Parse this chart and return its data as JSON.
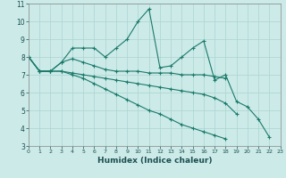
{
  "xlabel": "Humidex (Indice chaleur)",
  "bg_color": "#cceae8",
  "line_color": "#1a7a6a",
  "grid_color": "#aad4d0",
  "xlim": [
    0,
    23
  ],
  "ylim": [
    3,
    11
  ],
  "xticks": [
    0,
    1,
    2,
    3,
    4,
    5,
    6,
    7,
    8,
    9,
    10,
    11,
    12,
    13,
    14,
    15,
    16,
    17,
    18,
    19,
    20,
    21,
    22,
    23
  ],
  "yticks": [
    3,
    4,
    5,
    6,
    7,
    8,
    9,
    10,
    11
  ],
  "series": [
    {
      "x": [
        0,
        1,
        2,
        3,
        4,
        5,
        6,
        7,
        8,
        9,
        10,
        11,
        12,
        13,
        14,
        15,
        16,
        17,
        18,
        19,
        20,
        21,
        22
      ],
      "y": [
        8.0,
        7.2,
        7.2,
        7.7,
        8.5,
        8.5,
        8.5,
        8.0,
        8.5,
        9.0,
        10.0,
        10.7,
        7.4,
        7.5,
        8.0,
        8.5,
        8.9,
        6.7,
        7.0,
        5.5,
        5.2,
        4.5,
        3.5
      ]
    },
    {
      "x": [
        0,
        1,
        2,
        3,
        4,
        5,
        6,
        7,
        8,
        9,
        10,
        11,
        12,
        13,
        14,
        15,
        16,
        17,
        18
      ],
      "y": [
        8.0,
        7.2,
        7.2,
        7.7,
        7.9,
        7.7,
        7.5,
        7.3,
        7.2,
        7.2,
        7.2,
        7.1,
        7.1,
        7.1,
        7.0,
        7.0,
        7.0,
        6.9,
        6.8
      ]
    },
    {
      "x": [
        0,
        1,
        2,
        3,
        4,
        5,
        6,
        7,
        8,
        9,
        10,
        11,
        12,
        13,
        14,
        15,
        16,
        17,
        18,
        19
      ],
      "y": [
        8.0,
        7.2,
        7.2,
        7.2,
        7.1,
        7.0,
        6.9,
        6.8,
        6.7,
        6.6,
        6.5,
        6.4,
        6.3,
        6.2,
        6.1,
        6.0,
        5.9,
        5.7,
        5.4,
        4.8
      ]
    },
    {
      "x": [
        0,
        1,
        2,
        3,
        4,
        5,
        6,
        7,
        8,
        9,
        10,
        11,
        12,
        13,
        14,
        15,
        16,
        17,
        18
      ],
      "y": [
        8.0,
        7.2,
        7.2,
        7.2,
        7.0,
        6.8,
        6.5,
        6.2,
        5.9,
        5.6,
        5.3,
        5.0,
        4.8,
        4.5,
        4.2,
        4.0,
        3.8,
        3.6,
        3.4
      ]
    }
  ]
}
